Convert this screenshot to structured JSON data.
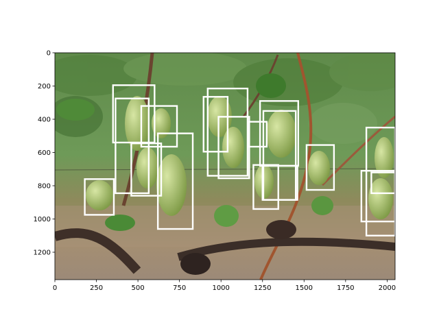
{
  "figure": {
    "x_axis": {
      "ticks": [
        0,
        250,
        500,
        750,
        1000,
        1250,
        1500,
        1750,
        2000
      ],
      "range": [
        0,
        2048
      ]
    },
    "y_axis": {
      "ticks": [
        0,
        200,
        400,
        600,
        800,
        1000,
        1200
      ],
      "range": [
        0,
        1365
      ],
      "inverted": true
    },
    "box_color": "#ffffff",
    "boxes": [
      {
        "x1": 350,
        "y1": 195,
        "x2": 600,
        "y2": 540
      },
      {
        "x1": 365,
        "y1": 275,
        "x2": 565,
        "y2": 845
      },
      {
        "x1": 460,
        "y1": 545,
        "x2": 640,
        "y2": 860
      },
      {
        "x1": 520,
        "y1": 320,
        "x2": 735,
        "y2": 565
      },
      {
        "x1": 620,
        "y1": 485,
        "x2": 830,
        "y2": 1060
      },
      {
        "x1": 180,
        "y1": 760,
        "x2": 355,
        "y2": 975
      },
      {
        "x1": 895,
        "y1": 265,
        "x2": 1040,
        "y2": 595
      },
      {
        "x1": 920,
        "y1": 215,
        "x2": 1160,
        "y2": 740
      },
      {
        "x1": 985,
        "y1": 385,
        "x2": 1170,
        "y2": 755
      },
      {
        "x1": 1165,
        "y1": 415,
        "x2": 1275,
        "y2": 565
      },
      {
        "x1": 1235,
        "y1": 290,
        "x2": 1465,
        "y2": 680
      },
      {
        "x1": 1255,
        "y1": 350,
        "x2": 1450,
        "y2": 885
      },
      {
        "x1": 1195,
        "y1": 675,
        "x2": 1345,
        "y2": 940
      },
      {
        "x1": 1250,
        "y1": 680,
        "x2": 1460,
        "y2": 885
      },
      {
        "x1": 1515,
        "y1": 555,
        "x2": 1680,
        "y2": 825
      },
      {
        "x1": 1845,
        "y1": 710,
        "x2": 2048,
        "y2": 1015
      },
      {
        "x1": 1875,
        "y1": 450,
        "x2": 2048,
        "y2": 1100
      },
      {
        "x1": 1905,
        "y1": 720,
        "x2": 2048,
        "y2": 845
      }
    ]
  }
}
